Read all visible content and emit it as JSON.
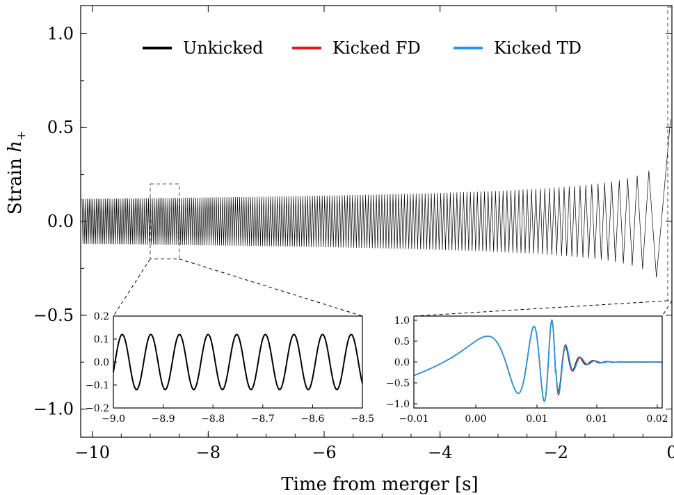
{
  "chart_data": {
    "type": "line",
    "xlabel": "Time from merger [s]",
    "ylabel": "Strain h+",
    "xlim": [
      -10.2,
      0.0
    ],
    "ylim": [
      -1.15,
      1.15
    ],
    "x_ticks": [
      -10,
      -8,
      -6,
      -4,
      -2,
      0
    ],
    "x_tick_labels": [
      "−10",
      "−8",
      "−6",
      "−4",
      "−2",
      "0"
    ],
    "y_ticks": [
      1.0,
      0.5,
      0.0,
      -0.5,
      -1.0
    ],
    "y_tick_labels": [
      "1.0",
      "0.5",
      "0.0",
      "−0.5",
      "−1.0"
    ],
    "legend": {
      "placement": "top",
      "entries": [
        {
          "label": "Unkicked",
          "color": "#000000"
        },
        {
          "label": "Kicked FD",
          "color": "#e8141b"
        },
        {
          "label": "Kicked TD",
          "color": "#1a9ee8"
        }
      ]
    },
    "main_series": {
      "name": "Unkicked",
      "amplitude_start": 0.12,
      "amplitude_end": 1.0,
      "time_span": [
        -10.2,
        0.0
      ]
    },
    "zoom_region": {
      "x": [
        -9.0,
        -8.5
      ],
      "y": [
        -0.2,
        0.2
      ]
    },
    "insets": [
      {
        "id": "left",
        "xlim": [
          -9.0,
          -8.5
        ],
        "ylim": [
          -0.2,
          0.2
        ],
        "x_ticks": [
          -9.0,
          -8.9,
          -8.8,
          -8.7,
          -8.6,
          -8.5
        ],
        "x_tick_labels": [
          "−9.0",
          "−8.9",
          "−8.8",
          "−8.7",
          "−8.6",
          "−8.5"
        ],
        "y_ticks": [
          0.2,
          0.1,
          0.0,
          -0.1,
          -0.2
        ],
        "y_tick_labels": [
          "0.2",
          "0.1",
          "0.0",
          "−0.1",
          "−0.2"
        ],
        "amplitude": 0.12,
        "cycles": 9
      },
      {
        "id": "right",
        "xlim": [
          -0.01,
          0.02
        ],
        "ylim": [
          -1.1,
          1.1
        ],
        "x_tick_labels": [
          "−0.01",
          "0.00",
          "0.01",
          "−0.01",
          "0.01",
          "0.02"
        ],
        "y_ticks": [
          1.0,
          0.5,
          0.0,
          -0.5,
          -1.0
        ],
        "y_tick_labels": [
          "1.0",
          "0.5",
          "0.0",
          "−0.5",
          "−1.0"
        ]
      }
    ]
  }
}
